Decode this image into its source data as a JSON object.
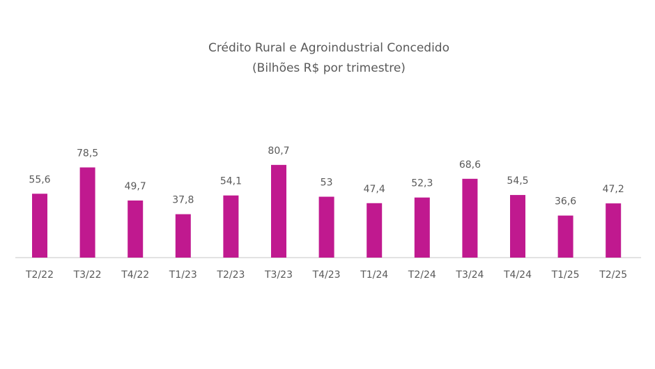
{
  "chart_data": {
    "type": "bar",
    "title": "Crédito Rural e Agroindustrial Concedido",
    "subtitle": "(Bilhões R$ por trimestre)",
    "categories": [
      "T2/22",
      "T3/22",
      "T4/22",
      "T1/23",
      "T2/23",
      "T3/23",
      "T4/23",
      "T1/24",
      "T2/24",
      "T3/24",
      "T4/24",
      "T1/25",
      "T2/25"
    ],
    "values": [
      55.6,
      78.5,
      49.7,
      37.8,
      54.1,
      80.7,
      53,
      47.4,
      52.3,
      68.6,
      54.5,
      36.6,
      47.2
    ],
    "value_labels": [
      "55,6",
      "78,5",
      "49,7",
      "37,8",
      "54,1",
      "80,7",
      "53",
      "47,4",
      "52,3",
      "68,6",
      "54,5",
      "36,6",
      "47,2"
    ],
    "color": "#c0198f"
  }
}
